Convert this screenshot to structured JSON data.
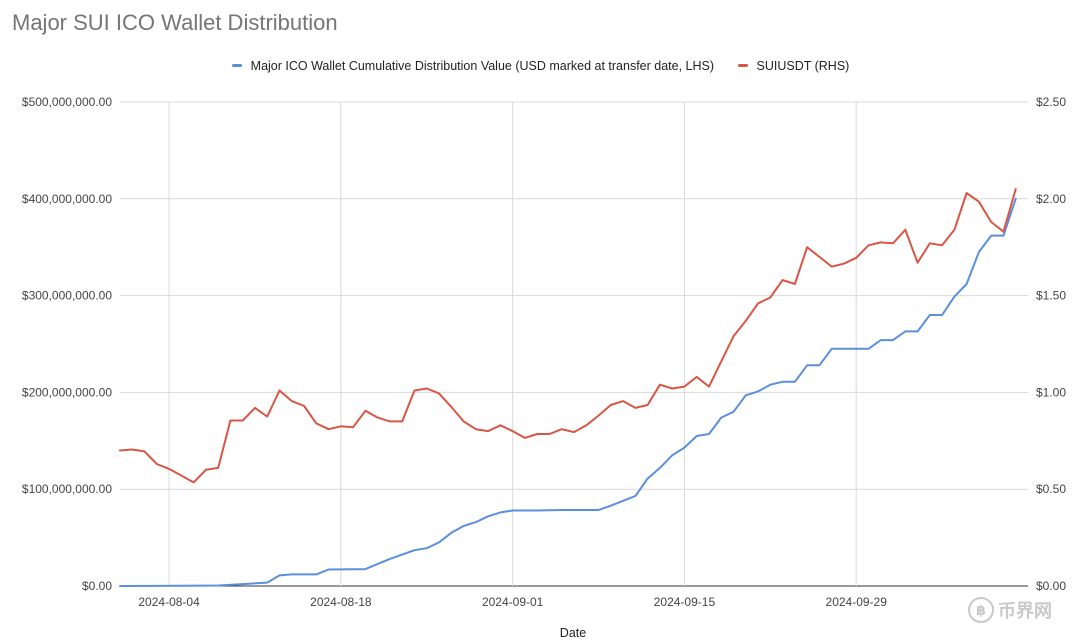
{
  "chart_data": {
    "type": "line",
    "title": "Major SUI ICO Wallet Distribution",
    "xlabel": "Date",
    "x_ticks": [
      "2024-08-04",
      "2024-08-18",
      "2024-09-01",
      "2024-09-15",
      "2024-09-29"
    ],
    "y_left_ticks": [
      "$0.00",
      "$100,000,000.00",
      "$200,000,000.00",
      "$300,000,000.00",
      "$400,000,000.00",
      "$500,000,000.00"
    ],
    "y_right_ticks": [
      "$0.00",
      "$0.50",
      "$1.00",
      "$1.50",
      "$2.00",
      "$2.50"
    ],
    "y_left_range": [
      0,
      500000000
    ],
    "y_right_range": [
      0,
      2.5
    ],
    "x_range": [
      "2024-07-31",
      "2024-10-13"
    ],
    "grid": true,
    "legend_position": "top",
    "series": [
      {
        "name": "Major ICO Wallet Cumulative Distribution Value (USD marked at transfer date, LHS)",
        "axis": "left",
        "color": "#5b8fde",
        "points": [
          [
            "2024-07-31",
            0
          ],
          [
            "2024-08-05",
            300000
          ],
          [
            "2024-08-08",
            500000
          ],
          [
            "2024-08-10",
            2000000
          ],
          [
            "2024-08-12",
            3500000
          ],
          [
            "2024-08-13",
            11000000
          ],
          [
            "2024-08-14",
            12000000
          ],
          [
            "2024-08-16",
            12000000
          ],
          [
            "2024-08-17",
            17000000
          ],
          [
            "2024-08-20",
            17500000
          ],
          [
            "2024-08-22",
            28000000
          ],
          [
            "2024-08-24",
            37000000
          ],
          [
            "2024-08-25",
            39000000
          ],
          [
            "2024-08-26",
            45000000
          ],
          [
            "2024-08-27",
            55000000
          ],
          [
            "2024-08-28",
            62000000
          ],
          [
            "2024-08-29",
            66000000
          ],
          [
            "2024-08-30",
            72000000
          ],
          [
            "2024-08-31",
            76000000
          ],
          [
            "2024-09-01",
            78000000
          ],
          [
            "2024-09-03",
            78000000
          ],
          [
            "2024-09-05",
            78500000
          ],
          [
            "2024-09-07",
            78500000
          ],
          [
            "2024-09-08",
            78500000
          ],
          [
            "2024-09-09",
            83000000
          ],
          [
            "2024-09-10",
            88000000
          ],
          [
            "2024-09-11",
            93000000
          ],
          [
            "2024-09-12",
            111000000
          ],
          [
            "2024-09-13",
            122000000
          ],
          [
            "2024-09-14",
            135000000
          ],
          [
            "2024-09-15",
            143000000
          ],
          [
            "2024-09-16",
            155000000
          ],
          [
            "2024-09-17",
            157000000
          ],
          [
            "2024-09-18",
            174000000
          ],
          [
            "2024-09-19",
            180000000
          ],
          [
            "2024-09-20",
            197000000
          ],
          [
            "2024-09-21",
            201000000
          ],
          [
            "2024-09-22",
            208000000
          ],
          [
            "2024-09-23",
            211000000
          ],
          [
            "2024-09-24",
            211000000
          ],
          [
            "2024-09-25",
            228000000
          ],
          [
            "2024-09-26",
            228000000
          ],
          [
            "2024-09-27",
            245000000
          ],
          [
            "2024-09-28",
            245000000
          ],
          [
            "2024-09-29",
            245000000
          ],
          [
            "2024-09-30",
            245000000
          ],
          [
            "2024-10-01",
            254000000
          ],
          [
            "2024-10-02",
            254000000
          ],
          [
            "2024-10-03",
            263000000
          ],
          [
            "2024-10-04",
            263000000
          ],
          [
            "2024-10-05",
            280000000
          ],
          [
            "2024-10-06",
            280000000
          ],
          [
            "2024-10-07",
            299000000
          ],
          [
            "2024-10-08",
            312000000
          ],
          [
            "2024-10-09",
            345000000
          ],
          [
            "2024-10-10",
            362000000
          ],
          [
            "2024-10-11",
            362000000
          ],
          [
            "2024-10-12",
            400000000
          ]
        ]
      },
      {
        "name": "SUIUSDT (RHS)",
        "axis": "right",
        "color": "#d95644",
        "points": [
          [
            "2024-07-31",
            0.7
          ],
          [
            "2024-08-01",
            0.705
          ],
          [
            "2024-08-02",
            0.695
          ],
          [
            "2024-08-03",
            0.63
          ],
          [
            "2024-08-04",
            0.605
          ],
          [
            "2024-08-05",
            0.57
          ],
          [
            "2024-08-06",
            0.535
          ],
          [
            "2024-08-07",
            0.6
          ],
          [
            "2024-08-08",
            0.61
          ],
          [
            "2024-08-09",
            0.855
          ],
          [
            "2024-08-10",
            0.855
          ],
          [
            "2024-08-11",
            0.92
          ],
          [
            "2024-08-12",
            0.875
          ],
          [
            "2024-08-13",
            1.01
          ],
          [
            "2024-08-14",
            0.955
          ],
          [
            "2024-08-15",
            0.93
          ],
          [
            "2024-08-16",
            0.84
          ],
          [
            "2024-08-17",
            0.81
          ],
          [
            "2024-08-18",
            0.825
          ],
          [
            "2024-08-19",
            0.82
          ],
          [
            "2024-08-20",
            0.905
          ],
          [
            "2024-08-21",
            0.87
          ],
          [
            "2024-08-22",
            0.85
          ],
          [
            "2024-08-23",
            0.85
          ],
          [
            "2024-08-24",
            1.01
          ],
          [
            "2024-08-25",
            1.02
          ],
          [
            "2024-08-26",
            0.995
          ],
          [
            "2024-08-27",
            0.925
          ],
          [
            "2024-08-28",
            0.85
          ],
          [
            "2024-08-29",
            0.81
          ],
          [
            "2024-08-30",
            0.8
          ],
          [
            "2024-08-31",
            0.83
          ],
          [
            "2024-09-01",
            0.8
          ],
          [
            "2024-09-02",
            0.765
          ],
          [
            "2024-09-03",
            0.785
          ],
          [
            "2024-09-04",
            0.785
          ],
          [
            "2024-09-05",
            0.81
          ],
          [
            "2024-09-06",
            0.795
          ],
          [
            "2024-09-07",
            0.83
          ],
          [
            "2024-09-08",
            0.88
          ],
          [
            "2024-09-09",
            0.935
          ],
          [
            "2024-09-10",
            0.955
          ],
          [
            "2024-09-11",
            0.92
          ],
          [
            "2024-09-12",
            0.935
          ],
          [
            "2024-09-13",
            1.04
          ],
          [
            "2024-09-14",
            1.02
          ],
          [
            "2024-09-15",
            1.03
          ],
          [
            "2024-09-16",
            1.08
          ],
          [
            "2024-09-17",
            1.03
          ],
          [
            "2024-09-18",
            1.16
          ],
          [
            "2024-09-19",
            1.29
          ],
          [
            "2024-09-20",
            1.37
          ],
          [
            "2024-09-21",
            1.46
          ],
          [
            "2024-09-22",
            1.49
          ],
          [
            "2024-09-23",
            1.58
          ],
          [
            "2024-09-24",
            1.56
          ],
          [
            "2024-09-25",
            1.75
          ],
          [
            "2024-09-26",
            1.7
          ],
          [
            "2024-09-27",
            1.65
          ],
          [
            "2024-09-28",
            1.665
          ],
          [
            "2024-09-29",
            1.695
          ],
          [
            "2024-09-30",
            1.76
          ],
          [
            "2024-10-01",
            1.775
          ],
          [
            "2024-10-02",
            1.77
          ],
          [
            "2024-10-03",
            1.84
          ],
          [
            "2024-10-04",
            1.67
          ],
          [
            "2024-10-05",
            1.77
          ],
          [
            "2024-10-06",
            1.76
          ],
          [
            "2024-10-07",
            1.84
          ],
          [
            "2024-10-08",
            2.03
          ],
          [
            "2024-10-09",
            1.985
          ],
          [
            "2024-10-10",
            1.88
          ],
          [
            "2024-10-11",
            1.83
          ],
          [
            "2024-10-12",
            2.05
          ]
        ]
      }
    ]
  },
  "watermark": {
    "text": "币界网",
    "coin_glyph": "฿"
  }
}
